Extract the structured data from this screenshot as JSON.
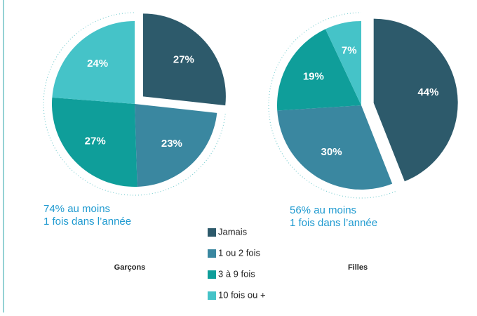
{
  "chart_data": [
    {
      "type": "pie",
      "title": "Garçons",
      "categories": [
        "Jamais",
        "1 ou 2 fois",
        "3 à 9 fois",
        "10 fois ou +"
      ],
      "values": [
        27,
        23,
        27,
        24
      ],
      "value_labels": [
        "27%",
        "23%",
        "27%",
        "24%"
      ],
      "colors": [
        "#2d5a6b",
        "#3a87a0",
        "#0f9e9a",
        "#45c3c8"
      ],
      "annotation": [
        "74% au moins",
        "1 fois dans l’année"
      ]
    },
    {
      "type": "pie",
      "title": "Filles",
      "categories": [
        "Jamais",
        "1 ou 2 fois",
        "3 à 9 fois",
        "10 fois ou +"
      ],
      "values": [
        44,
        30,
        19,
        7
      ],
      "value_labels": [
        "44%",
        "30%",
        "19%",
        "7%"
      ],
      "colors": [
        "#2d5a6b",
        "#3a87a0",
        "#0f9e9a",
        "#45c3c8"
      ],
      "annotation": [
        "56% au moins",
        "1 fois dans l’année"
      ]
    }
  ]
}
